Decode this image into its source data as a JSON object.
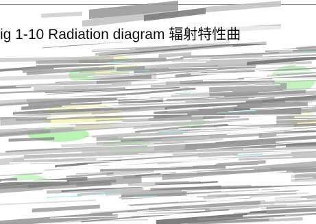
{
  "figure": {
    "caption": "ig 1-10 Radiation diagram  辐射特性曲"
  },
  "palette": {
    "streak_gray": "#9a9a9a",
    "streak_dark_gray": "#7d7d7d",
    "streak_light_gray": "#c4c4c4",
    "streak_green": "#aaf0a4",
    "streak_yellow": "#f2f5b6",
    "streak_cyan": "#8ee3d8",
    "border": "#8a8a8a"
  }
}
